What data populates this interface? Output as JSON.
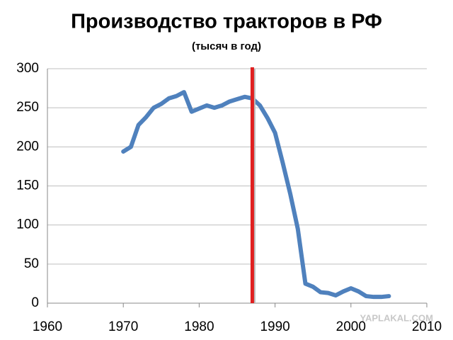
{
  "chart_data": {
    "type": "line",
    "title": "Производство тракторов в РФ",
    "subtitle": "(тысяч в год)",
    "x": [
      1970,
      1971,
      1972,
      1973,
      1974,
      1975,
      1976,
      1977,
      1978,
      1979,
      1980,
      1981,
      1982,
      1983,
      1984,
      1985,
      1986,
      1987,
      1988,
      1989,
      1990,
      1991,
      1992,
      1993,
      1994,
      1995,
      1996,
      1997,
      1998,
      1999,
      2000,
      2001,
      2002,
      2003,
      2004,
      2005
    ],
    "series": [
      {
        "color": "#4f81bd",
        "values": [
          194,
          200,
          228,
          238,
          250,
          255,
          262,
          265,
          270,
          245,
          249,
          253,
          250,
          253,
          258,
          261,
          264,
          262,
          253,
          237,
          218,
          180,
          140,
          95,
          25,
          21,
          14,
          13,
          10,
          15,
          19,
          15,
          9,
          8,
          8,
          9
        ]
      }
    ],
    "xlim": [
      1960,
      2010
    ],
    "xticks": [
      1960,
      1970,
      1980,
      1990,
      2000,
      2010
    ],
    "ylim": [
      0,
      300
    ],
    "yticks": [
      0,
      50,
      100,
      150,
      200,
      250,
      300
    ],
    "grid": true,
    "marker_x": 1987,
    "marker_color": "#e02020",
    "watermark": "YAPLAKAL.COM"
  }
}
